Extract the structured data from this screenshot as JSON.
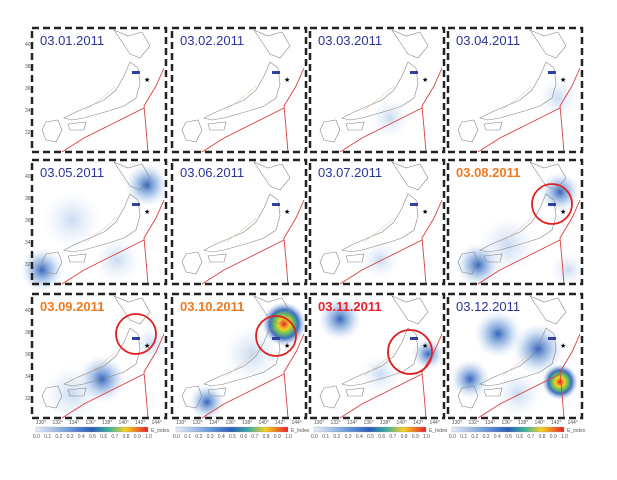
{
  "panels": [
    {
      "date": "03.01.2011",
      "color": "#2b3596"
    },
    {
      "date": "03.02.2011",
      "color": "#2b3596"
    },
    {
      "date": "03.03.2011",
      "color": "#2b3596"
    },
    {
      "date": "03.04.2011",
      "color": "#2b3596"
    },
    {
      "date": "03.05.2011",
      "color": "#2b3596"
    },
    {
      "date": "03.06.2011",
      "color": "#2b3596"
    },
    {
      "date": "03.07.2011",
      "color": "#2b3596"
    },
    {
      "date": "03.08.2011",
      "color": "#f07820"
    },
    {
      "date": "03.09.2011",
      "color": "#f07820"
    },
    {
      "date": "03.10.2011",
      "color": "#f07820"
    },
    {
      "date": "03.11.2011",
      "color": "#e8202a"
    },
    {
      "date": "03.12.2011",
      "color": "#2b3596"
    }
  ],
  "lat_labels": [
    "40",
    "38",
    "36",
    "34",
    "32"
  ],
  "lon_labels": [
    "130°",
    "132°",
    "134°",
    "136°",
    "138°",
    "140°",
    "142°",
    "144°"
  ],
  "colorbar": {
    "labels": [
      "0.0",
      "0.1",
      "0.2",
      "0.3",
      "0.4",
      "0.5",
      "0.6",
      "0.7",
      "0.8",
      "0.9",
      "1.0"
    ],
    "title": "E_Index"
  }
}
